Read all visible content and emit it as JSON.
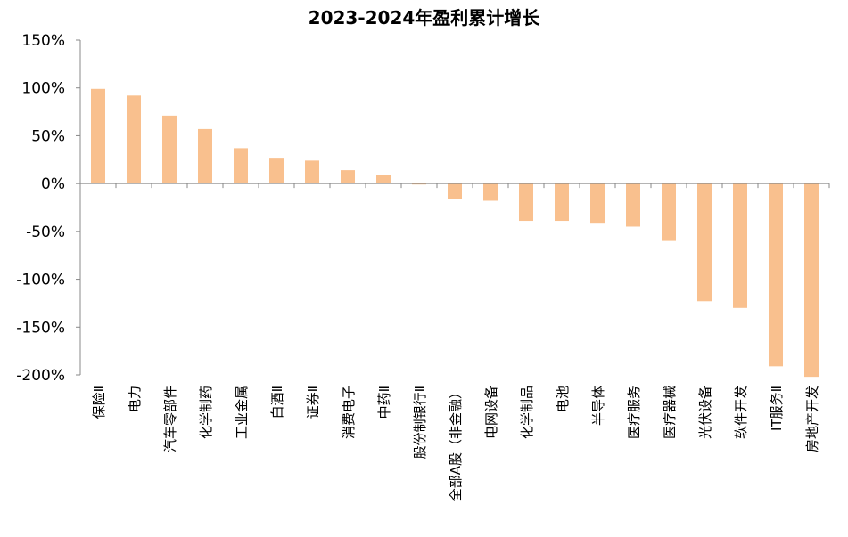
{
  "chart_data": {
    "type": "bar",
    "title": "2023-2024年盈利累计增长",
    "xlabel": "",
    "ylabel": "",
    "ylim": [
      -200,
      150
    ],
    "y_ticks": [
      "150%",
      "100%",
      "50%",
      "0%",
      "-50%",
      "-100%",
      "-150%",
      "-200%"
    ],
    "y_tick_values": [
      150,
      100,
      50,
      0,
      -50,
      -100,
      -150,
      -200
    ],
    "grid": false,
    "bar_color": "#F9C08E",
    "categories": [
      "保险Ⅱ",
      "电力",
      "汽车零部件",
      "化学制药",
      "工业金属",
      "白酒Ⅱ",
      "证券Ⅱ",
      "消费电子",
      "中药Ⅱ",
      "股份制银行Ⅱ",
      "全部A股（非金融）",
      "电网设备",
      "化学制品",
      "电池",
      "半导体",
      "医疗服务",
      "医疗器械",
      "光伏设备",
      "软件开发",
      "IT服务Ⅱ",
      "房地产开发"
    ],
    "values": [
      99,
      92,
      71,
      57,
      37,
      27,
      24,
      14,
      9,
      -1,
      -16,
      -18,
      -39,
      -39,
      -41,
      -45,
      -60,
      -123,
      -130,
      -191,
      -202
    ]
  }
}
